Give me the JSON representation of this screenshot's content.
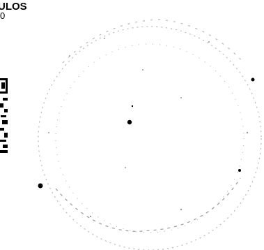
{
  "header": {
    "title": "ULOS",
    "subtitle": "0"
  }
}
